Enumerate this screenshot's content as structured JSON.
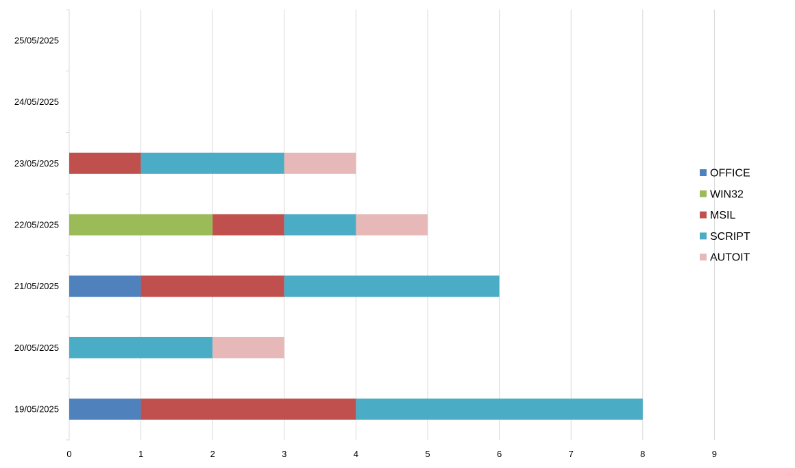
{
  "chart_data": {
    "type": "bar",
    "orientation": "horizontal",
    "stacked": true,
    "categories": [
      "19/05/2025",
      "20/05/2025",
      "21/05/2025",
      "22/05/2025",
      "23/05/2025",
      "24/05/2025",
      "25/05/2025"
    ],
    "series": [
      {
        "name": "OFFICE",
        "color": "#4f81bd",
        "values": [
          1,
          0,
          1,
          0,
          0,
          0,
          0
        ]
      },
      {
        "name": "WIN32",
        "color": "#9bbb59",
        "values": [
          0,
          0,
          0,
          2,
          0,
          0,
          0
        ]
      },
      {
        "name": "MSIL",
        "color": "#c0504d",
        "values": [
          3,
          0,
          2,
          1,
          1,
          0,
          0
        ]
      },
      {
        "name": "SCRIPT",
        "color": "#4bacc6",
        "values": [
          4,
          2,
          3,
          1,
          2,
          0,
          0
        ]
      },
      {
        "name": "AUTOIT",
        "color": "#e6b9b8",
        "values": [
          0,
          1,
          0,
          1,
          1,
          0,
          0
        ]
      }
    ],
    "x_ticks": [
      "0",
      "1",
      "2",
      "3",
      "4",
      "5",
      "6",
      "7",
      "8",
      "9"
    ],
    "xlim": [
      0,
      9
    ],
    "grid": true,
    "legend_position": "right",
    "title": "",
    "xlabel": "",
    "ylabel": ""
  }
}
